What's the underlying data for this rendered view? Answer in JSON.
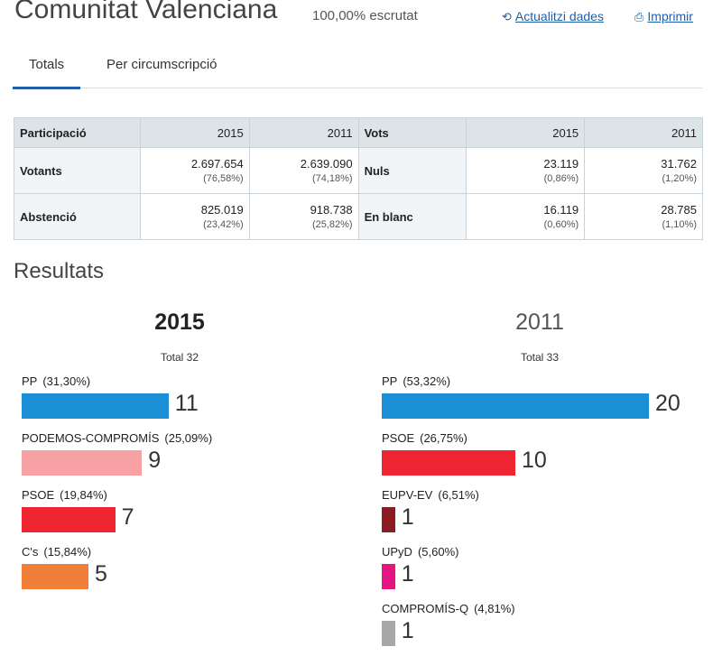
{
  "header": {
    "title": "Comunitat Valenciana",
    "scrutiny": "100,00% escrutat",
    "refresh_label": "Actualitzi dades",
    "print_label": "Imprimir",
    "refresh_icon": "refresh-icon",
    "print_icon": "printer-icon"
  },
  "tabs": [
    {
      "label": "Totals",
      "active": true
    },
    {
      "label": "Per circumscripció",
      "active": false
    }
  ],
  "stats": {
    "participation_header": "Participació",
    "votes_header": "Vots",
    "year_a": "2015",
    "year_b": "2011",
    "rows": [
      {
        "label": "Votants",
        "a_value": "2.697.654",
        "a_pct": "(76,58%)",
        "b_value": "2.639.090",
        "b_pct": "(74,18%)",
        "label2": "Nuls",
        "c_value": "23.119",
        "c_pct": "(0,86%)",
        "d_value": "31.762",
        "d_pct": "(1,20%)"
      },
      {
        "label": "Abstenció",
        "a_value": "825.019",
        "a_pct": "(23,42%)",
        "b_value": "918.738",
        "b_pct": "(25,82%)",
        "label2": "En blanc",
        "c_value": "16.119",
        "c_pct": "(0,60%)",
        "d_value": "28.785",
        "d_pct": "(1,10%)"
      }
    ]
  },
  "results": {
    "title": "Resultats",
    "col_2015": {
      "year": "2015",
      "total": "Total 32",
      "parties": [
        {
          "name": "PP",
          "pct": "(31,30%)",
          "seats": "11",
          "color": "#1a8fd6"
        },
        {
          "name": "PODEMOS-COMPROMÍS",
          "pct": "(25,09%)",
          "seats": "9",
          "color": "#f7a1a4"
        },
        {
          "name": "PSOE",
          "pct": "(19,84%)",
          "seats": "7",
          "color": "#ef2433"
        },
        {
          "name": "C's",
          "pct": "(15,84%)",
          "seats": "5",
          "color": "#f07f39"
        }
      ]
    },
    "col_2011": {
      "year": "2011",
      "total": "Total 33",
      "parties": [
        {
          "name": "PP",
          "pct": "(53,32%)",
          "seats": "20",
          "color": "#1a8fd6"
        },
        {
          "name": "PSOE",
          "pct": "(26,75%)",
          "seats": "10",
          "color": "#ef2433"
        },
        {
          "name": "EUPV-EV",
          "pct": "(6,51%)",
          "seats": "1",
          "color": "#8b1c24"
        },
        {
          "name": "UPyD",
          "pct": "(5,60%)",
          "seats": "1",
          "color": "#e5147f"
        },
        {
          "name": "COMPROMÍS-Q",
          "pct": "(4,81%)",
          "seats": "1",
          "color": "#a7a7a7"
        }
      ]
    }
  }
}
